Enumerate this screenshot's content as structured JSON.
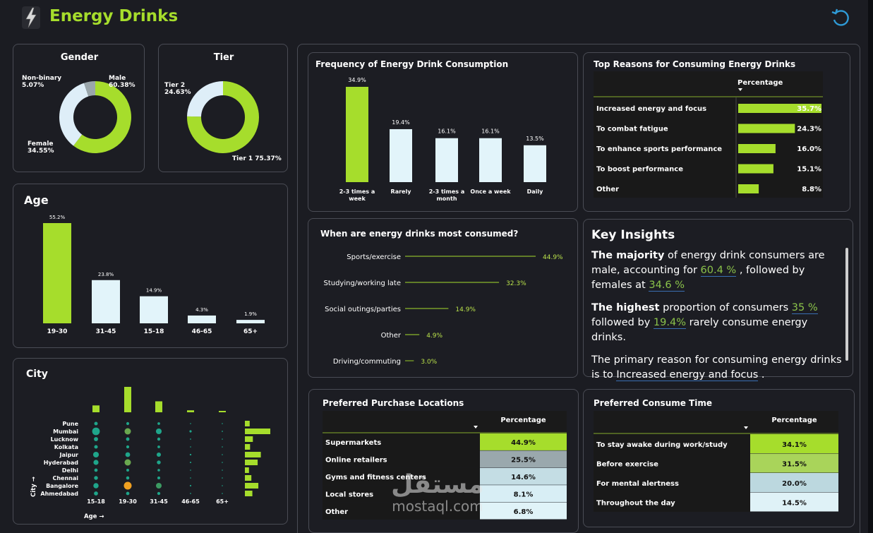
{
  "header": {
    "title": "Energy Drinks",
    "logo_icon": "lightning-bolt-icon",
    "reset_icon": "undo-arrow-icon",
    "accent": "#a6dd2c"
  },
  "gender": {
    "title": "Gender",
    "slices": [
      {
        "label": "Male",
        "value": 60.38,
        "pct": "60.38%",
        "color": "#a6dd2c"
      },
      {
        "label": "Female",
        "value": 34.55,
        "pct": "34.55%",
        "color": "#deeef8"
      },
      {
        "label": "Non-binary",
        "value": 5.07,
        "pct": "5.07%",
        "color": "#9aa6ab"
      }
    ]
  },
  "tier": {
    "title": "Tier",
    "slices": [
      {
        "label": "Tier 1",
        "value": 75.37,
        "pct": "75.37%",
        "color": "#a6dd2c"
      },
      {
        "label": "Tier 2",
        "value": 24.63,
        "pct": "24.63%",
        "color": "#deeef8"
      }
    ]
  },
  "age": {
    "title": "Age",
    "categories": [
      "19-30",
      "31-45",
      "15-18",
      "46-65",
      "65+"
    ],
    "values": [
      55.2,
      23.8,
      14.9,
      4.3,
      1.9
    ],
    "labels": [
      "55.2%",
      "23.8%",
      "14.9%",
      "4.3%",
      "1.9%"
    ]
  },
  "city": {
    "title": "City",
    "cities": [
      "Pune",
      "Mumbai",
      "Lucknow",
      "Kolkata",
      "Jaipur",
      "Hyderabad",
      "Delhi",
      "Chennai",
      "Bangalore",
      "Ahmedabad"
    ],
    "ages": [
      "15-18",
      "19-30",
      "31-45",
      "46-65",
      "65+"
    ],
    "age_totals": [
      14.9,
      55.2,
      23.8,
      4.3,
      1.9
    ],
    "city_totals": [
      4.8,
      25.5,
      8.0,
      5.2,
      16.0,
      12.8,
      4.1,
      6.5,
      13.5,
      7.5
    ],
    "x_axis_label": "Age →",
    "y_axis_label": "City →"
  },
  "frequency": {
    "title": "Frequency of Energy Drink Consumption",
    "categories": [
      [
        "2-3 times a",
        "week"
      ],
      [
        "Rarely"
      ],
      [
        "2-3 times a",
        "month"
      ],
      [
        "Once a week"
      ],
      [
        "Daily"
      ]
    ],
    "values": [
      34.9,
      19.4,
      16.1,
      16.1,
      13.5
    ],
    "labels": [
      "34.9%",
      "19.4%",
      "16.1%",
      "16.1%",
      "13.5%"
    ]
  },
  "reasons": {
    "title": "Top Reasons for Consuming Energy Drinks",
    "column": "Percentage",
    "rows": [
      {
        "label": "Increased energy and focus",
        "value": 35.7,
        "pct": "35.7%"
      },
      {
        "label": "To combat fatigue",
        "value": 24.3,
        "pct": "24.3%"
      },
      {
        "label": "To enhance sports performance",
        "value": 16.0,
        "pct": "16.0%"
      },
      {
        "label": "To boost performance",
        "value": 15.1,
        "pct": "15.1%"
      },
      {
        "label": "Other",
        "value": 8.8,
        "pct": "8.8%"
      }
    ]
  },
  "when": {
    "title": "When are energy drinks most consumed?",
    "rows": [
      {
        "label": "Sports/exercise",
        "value": 44.9,
        "pct": "44.9%"
      },
      {
        "label": "Studying/working late",
        "value": 32.3,
        "pct": "32.3%"
      },
      {
        "label": "Social outings/parties",
        "value": 14.9,
        "pct": "14.9%"
      },
      {
        "label": "Other",
        "value": 4.9,
        "pct": "4.9%"
      },
      {
        "label": "Driving/commuting",
        "value": 3.0,
        "pct": "3.0%"
      }
    ]
  },
  "insights": {
    "title": "Key Insights",
    "p1": {
      "lead": "The majority",
      "t1": " of energy drink consumers are male, accounting for ",
      "v1": "60.4 %",
      "t2": " , followed by females at ",
      "v2": "34.6 %"
    },
    "p2": {
      "lead": "The highest",
      "t1": " proportion of consumers ",
      "v1": "35 %",
      "t2": " followed by ",
      "v2": "19.4%",
      "t3": " rarely consume energy drinks."
    },
    "p3": {
      "t1": "The primary reason for consuming energy drinks is to ",
      "v1": "Increased energy and focus",
      "t2": " ."
    }
  },
  "locations": {
    "title": "Preferred Purchase Locations",
    "column": "Percentage",
    "rows": [
      {
        "label": "Supermarkets",
        "pct": "44.9%",
        "color": "#a6dd2c"
      },
      {
        "label": "Online retailers",
        "pct": "25.5%",
        "color": "#9aa8ad"
      },
      {
        "label": "Gyms and fitness centers",
        "pct": "14.6%",
        "color": "#c4dde4"
      },
      {
        "label": "Local stores",
        "pct": "8.1%",
        "color": "#d8eef5"
      },
      {
        "label": "Other",
        "pct": "6.8%",
        "color": "#e0f3f8"
      }
    ]
  },
  "times": {
    "title": "Preferred Consume Time",
    "column": "Percentage",
    "rows": [
      {
        "label": "To stay awake during work/study",
        "pct": "34.1%",
        "color": "#a6dd2c"
      },
      {
        "label": "Before exercise",
        "pct": "31.5%",
        "color": "#a9d45a"
      },
      {
        "label": "For mental alertness",
        "pct": "20.0%",
        "color": "#bcd8df"
      },
      {
        "label": "Throughout the day",
        "pct": "14.5%",
        "color": "#dff2f7"
      }
    ]
  },
  "watermark": {
    "arabic": "مستقل",
    "latin": "mostaql.com"
  }
}
